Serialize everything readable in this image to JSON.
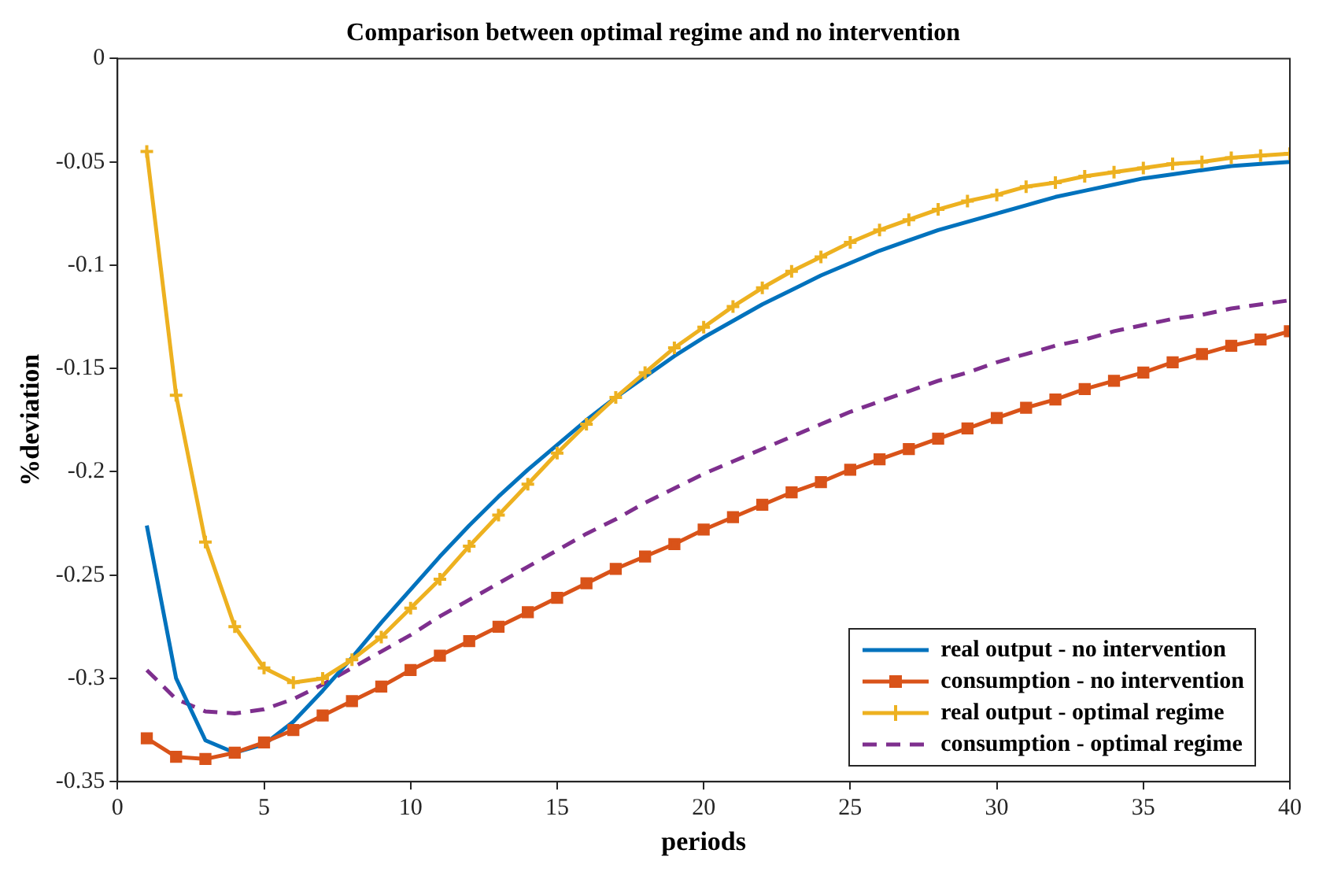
{
  "chart_data": {
    "type": "line",
    "title": "Comparison between optimal regime and no intervention",
    "xlabel": "periods",
    "ylabel": "%deviation",
    "x": [
      1,
      2,
      3,
      4,
      5,
      6,
      7,
      8,
      9,
      10,
      11,
      12,
      13,
      14,
      15,
      16,
      17,
      18,
      19,
      20,
      21,
      22,
      23,
      24,
      25,
      26,
      27,
      28,
      29,
      30,
      31,
      32,
      33,
      34,
      35,
      36,
      37,
      38,
      39,
      40
    ],
    "xlim": [
      0,
      40
    ],
    "xticks": [
      0,
      5,
      10,
      15,
      20,
      25,
      30,
      35,
      40
    ],
    "ylim": [
      -0.35,
      0
    ],
    "yticks": [
      -0.35,
      -0.3,
      -0.25,
      -0.2,
      -0.15,
      -0.1,
      -0.05,
      0
    ],
    "grid": false,
    "legend": "bottom right",
    "series": [
      {
        "name": "real output - no intervention",
        "color": "#0072bd",
        "marker": "none",
        "line_style": "solid",
        "values": [
          -0.226,
          -0.3,
          -0.33,
          -0.336,
          -0.332,
          -0.321,
          -0.306,
          -0.29,
          -0.273,
          -0.257,
          -0.241,
          -0.226,
          -0.212,
          -0.199,
          -0.187,
          -0.175,
          -0.164,
          -0.154,
          -0.144,
          -0.135,
          -0.127,
          -0.119,
          -0.112,
          -0.105,
          -0.099,
          -0.093,
          -0.088,
          -0.083,
          -0.079,
          -0.075,
          -0.071,
          -0.067,
          -0.064,
          -0.061,
          -0.058,
          -0.056,
          -0.054,
          -0.052,
          -0.051,
          -0.05
        ]
      },
      {
        "name": "consumption - no intervention",
        "color": "#d95319",
        "marker": "square",
        "line_style": "solid",
        "values": [
          -0.329,
          -0.338,
          -0.339,
          -0.336,
          -0.331,
          -0.325,
          -0.318,
          -0.311,
          -0.304,
          -0.296,
          -0.289,
          -0.282,
          -0.275,
          -0.268,
          -0.261,
          -0.254,
          -0.247,
          -0.241,
          -0.235,
          -0.228,
          -0.222,
          -0.216,
          -0.21,
          -0.205,
          -0.199,
          -0.194,
          -0.189,
          -0.184,
          -0.179,
          -0.174,
          -0.169,
          -0.165,
          -0.16,
          -0.156,
          -0.152,
          -0.147,
          -0.143,
          -0.139,
          -0.136,
          -0.132
        ]
      },
      {
        "name": "real output - optimal regime",
        "color": "#edb120",
        "marker": "cross",
        "line_style": "solid",
        "values": [
          -0.045,
          -0.163,
          -0.234,
          -0.275,
          -0.295,
          -0.302,
          -0.3,
          -0.291,
          -0.28,
          -0.266,
          -0.252,
          -0.236,
          -0.221,
          -0.206,
          -0.191,
          -0.177,
          -0.164,
          -0.152,
          -0.14,
          -0.13,
          -0.12,
          -0.111,
          -0.103,
          -0.096,
          -0.089,
          -0.083,
          -0.078,
          -0.073,
          -0.069,
          -0.066,
          -0.062,
          -0.06,
          -0.057,
          -0.055,
          -0.053,
          -0.051,
          -0.05,
          -0.048,
          -0.047,
          -0.046
        ]
      },
      {
        "name": "consumption - optimal regime",
        "color": "#7e2f8e",
        "marker": "none",
        "line_style": "dashed",
        "values": [
          -0.296,
          -0.31,
          -0.316,
          -0.317,
          -0.315,
          -0.31,
          -0.303,
          -0.295,
          -0.287,
          -0.279,
          -0.27,
          -0.262,
          -0.254,
          -0.246,
          -0.238,
          -0.23,
          -0.223,
          -0.215,
          -0.208,
          -0.201,
          -0.195,
          -0.189,
          -0.183,
          -0.177,
          -0.171,
          -0.166,
          -0.161,
          -0.156,
          -0.152,
          -0.147,
          -0.143,
          -0.139,
          -0.136,
          -0.132,
          -0.129,
          -0.126,
          -0.124,
          -0.121,
          -0.119,
          -0.117
        ]
      }
    ]
  }
}
